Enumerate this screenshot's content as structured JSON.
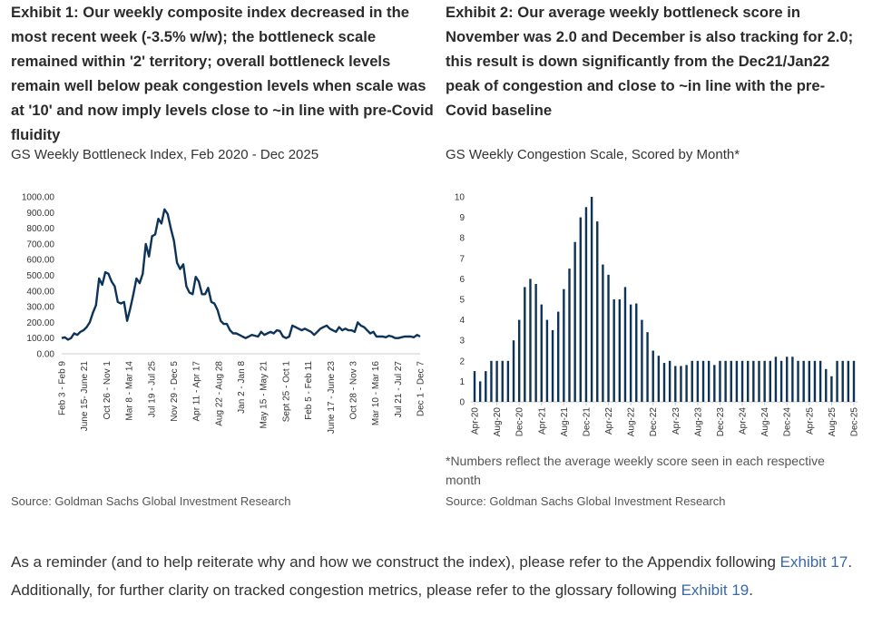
{
  "exhibit1": {
    "heading": "Exhibit 1: Our weekly composite index decreased in the most recent week (-3.5% w/w); the bottleneck scale remained within '2' territory; overall bottleneck levels remain well below peak congestion levels when scale was at '10' and now imply levels close to ~in line with pre-Covid fluidity",
    "subtitle": "GS Weekly Bottleneck Index, Feb 2020 - Dec 2025",
    "source": "Source: Goldman Sachs Global Investment Research"
  },
  "exhibit2": {
    "heading": "Exhibit 2: Our average weekly bottleneck score in November was 2.0 and December is also tracking for 2.0; this result is down significantly from the Dec21/Jan22 peak of congestion and close to ~in line with the pre-Covid baseline",
    "subtitle": "GS Weekly Congestion Scale, Scored by Month*",
    "footnote": "*Numbers reflect the average weekly score seen in each respective month",
    "source": "Source: Goldman Sachs Global Investment Research"
  },
  "paragraph": {
    "part1": "As a reminder (and to help reiterate why and how we construct the index), please refer to the Appendix following ",
    "link1": "Exhibit 17",
    "part2": ". Additionally, for further clarity on tracked congestion metrics, please refer to the glossary following ",
    "link2": "Exhibit 19",
    "part3": "."
  },
  "chart_data": [
    {
      "type": "line",
      "color": "#0d3358",
      "ylim": [
        0,
        1000
      ],
      "yticks": [
        "0.00",
        "100.00",
        "200.00",
        "300.00",
        "400.00",
        "500.00",
        "600.00",
        "700.00",
        "800.00",
        "900.00",
        "1000.00"
      ],
      "xticks": [
        "Feb 3 - Feb 9",
        "June 15- June 21",
        "Oct 26 - Nov 1",
        "Mar 8 - Mar 14",
        "Jul 19 - Jul 25",
        "Nov 29 - Dec 5",
        "Apr 11 - Apr 17",
        "Aug 22 - Aug 28",
        "Jan 2 - Jan 8",
        "May 15 - May 21",
        "Sept 25 - Oct 1",
        "Feb 5 - Feb 11",
        "June 17 - June 23",
        "Oct 28 - Nov 3",
        "Mar 10 - Mar 16",
        "Jul 21 - Jul 27",
        "Dec 1 - Dec 7"
      ],
      "values": [
        100,
        105,
        90,
        100,
        130,
        120,
        140,
        150,
        170,
        200,
        260,
        310,
        480,
        440,
        520,
        510,
        460,
        430,
        330,
        320,
        330,
        210,
        290,
        380,
        480,
        450,
        510,
        700,
        620,
        750,
        760,
        860,
        830,
        920,
        890,
        800,
        720,
        580,
        540,
        570,
        430,
        390,
        380,
        490,
        460,
        380,
        380,
        420,
        330,
        320,
        280,
        210,
        190,
        190,
        150,
        130,
        130,
        120,
        110,
        100,
        110,
        120,
        115,
        110,
        140,
        120,
        130,
        140,
        130,
        150,
        145,
        110,
        100,
        110,
        180,
        170,
        160,
        150,
        160,
        150,
        140,
        120,
        140,
        160,
        170,
        180,
        160,
        150,
        140,
        170,
        150,
        160,
        150,
        150,
        140,
        200,
        180,
        170,
        150,
        130,
        140,
        110,
        110,
        110,
        105,
        115,
        110,
        100,
        100,
        105,
        110,
        110,
        110,
        105,
        120,
        110
      ]
    },
    {
      "type": "bar",
      "color": "#0d3358",
      "ylim": [
        0,
        10
      ],
      "yticks": [
        "0",
        "1",
        "2",
        "3",
        "4",
        "5",
        "6",
        "7",
        "8",
        "9",
        "10"
      ],
      "categories_first": "Apr-20",
      "categories_last": "Dec-25",
      "xticks": [
        "Apr-20",
        "Aug-20",
        "Dec-20",
        "Apr-21",
        "Aug-21",
        "Dec-21",
        "Apr-22",
        "Aug-22",
        "Dec-22",
        "Apr-23",
        "Aug-23",
        "Dec-23",
        "Apr-24",
        "Aug-24",
        "Dec-24",
        "Apr-25",
        "Aug-25",
        "Dec-25"
      ],
      "values": [
        1.5,
        1,
        1.5,
        2,
        2,
        2,
        2,
        3,
        4,
        5.6,
        6,
        5.75,
        4.75,
        4,
        3.5,
        4.4,
        5.5,
        6.5,
        7.8,
        9,
        9.5,
        10,
        8.8,
        6.7,
        6.2,
        5,
        5,
        5.6,
        4.75,
        4.8,
        4,
        3.4,
        2.5,
        2.25,
        1.9,
        2,
        1.75,
        1.75,
        1.8,
        2,
        2,
        2,
        2,
        1.8,
        2,
        2,
        2,
        2,
        2,
        2,
        2,
        2,
        2,
        2,
        2.2,
        2,
        2.2,
        2.2,
        2,
        2,
        2,
        2,
        2,
        1.6,
        1.25,
        2,
        2,
        2,
        2
      ]
    }
  ]
}
